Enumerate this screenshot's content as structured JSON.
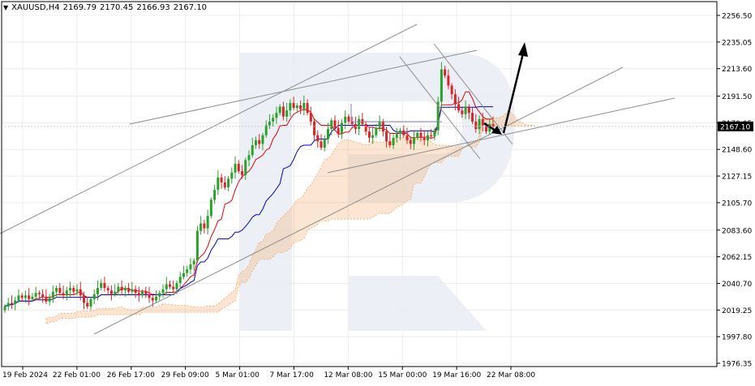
{
  "header": {
    "symbol": "XAUUSD,H4",
    "open": "2169.79",
    "high": "2170.45",
    "low": "2166.93",
    "close": "2167.10"
  },
  "colors": {
    "bull": "#2ca02c",
    "bear": "#d62728",
    "tenkan": "#e8000b",
    "kijun": "#0000c8",
    "cloud": "#f4a460",
    "trendline": "#8c8c8c",
    "arrow": "#000000",
    "watermark": "#dde3ef",
    "price_label_bg": "#000000"
  },
  "chart_data": {
    "type": "candlestick",
    "symbol": "XAUUSD",
    "timeframe": "H4",
    "current_price": 2167.1,
    "current_price_label": "2167.10",
    "ylim": [
      1976.35,
      2256.5
    ],
    "y_ticks": [
      "2256.50",
      "2235.05",
      "2213.60",
      "2191.50",
      "2170.05",
      "2148.60",
      "2127.15",
      "2105.70",
      "2083.60",
      "2062.15",
      "2040.70",
      "2019.25",
      "1997.80",
      "1976.35"
    ],
    "x_ticks": [
      "19 Feb 2024",
      "22 Feb 01:00",
      "26 Feb 17:00",
      "29 Feb 09:00",
      "5 Mar 01:00",
      "7 Mar 17:00",
      "12 Mar 08:00",
      "15 Mar 00:00",
      "19 Mar 16:00",
      "22 Mar 08:00"
    ],
    "grid": true,
    "indicators": [
      "Ichimoku Kinko Hyo"
    ],
    "candles_close": [
      2022,
      2025,
      2024,
      2027,
      2031,
      2029,
      2031,
      2028,
      2030,
      2033,
      2032,
      2030,
      2026,
      2029,
      2034,
      2037,
      2033,
      2031,
      2035,
      2037,
      2034,
      2036,
      2031,
      2025,
      2022,
      2028,
      2032,
      2037,
      2041,
      2037,
      2035,
      2032,
      2034,
      2038,
      2035,
      2037,
      2034,
      2036,
      2033,
      2031,
      2034,
      2032,
      2029,
      2027,
      2030,
      2033,
      2036,
      2040,
      2038,
      2036,
      2041,
      2046,
      2049,
      2052,
      2056,
      2059,
      2083,
      2089,
      2085,
      2095,
      2108,
      2116,
      2126,
      2122,
      2118,
      2125,
      2130,
      2137,
      2131,
      2128,
      2140,
      2144,
      2152,
      2156,
      2153,
      2160,
      2168,
      2171,
      2174,
      2178,
      2183,
      2175,
      2180,
      2186,
      2182,
      2184,
      2181,
      2186,
      2178,
      2171,
      2160,
      2155,
      2150,
      2157,
      2165,
      2172,
      2166,
      2161,
      2170,
      2175,
      2171,
      2169,
      2165,
      2173,
      2169,
      2163,
      2158,
      2160,
      2166,
      2171,
      2163,
      2155,
      2152,
      2158,
      2161,
      2164,
      2160,
      2156,
      2153,
      2158,
      2162,
      2158,
      2156,
      2160,
      2159,
      2164,
      2187,
      2213,
      2208,
      2200,
      2193,
      2185,
      2180,
      2177,
      2183,
      2178,
      2171,
      2165,
      2173,
      2168,
      2163,
      2169,
      2167
    ]
  },
  "annotation": {
    "arrow": "up"
  }
}
